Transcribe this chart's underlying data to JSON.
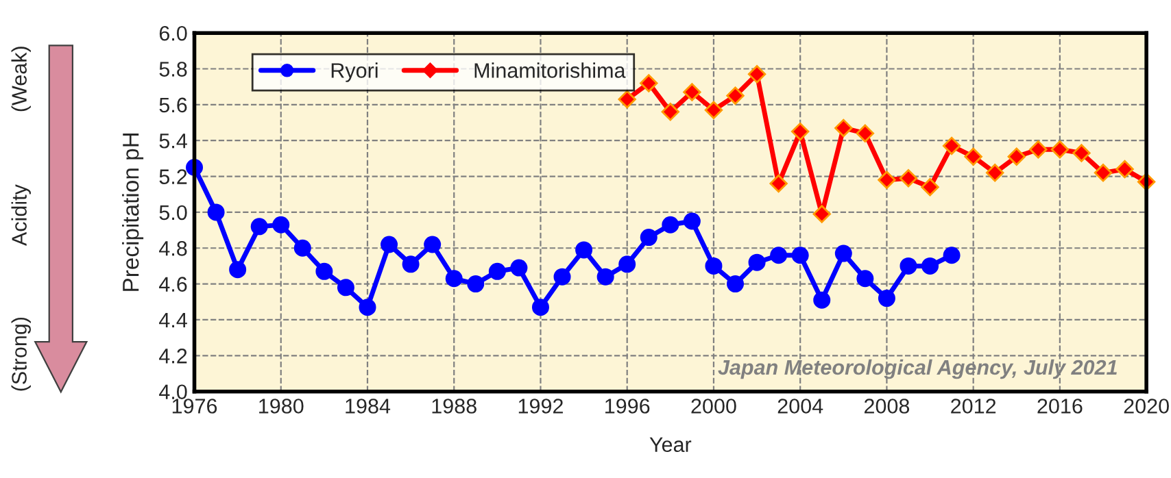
{
  "chart_data": {
    "type": "line",
    "xlabel": "Year",
    "ylabel": "Precipitation pH",
    "annotations": [
      "(Weak)",
      "Acidity",
      "(Strong)",
      "Japan Meteorological Agency, July 2021"
    ],
    "series": [
      {
        "name": "Ryori",
        "color": "#0000ff",
        "marker": "circle",
        "x": [
          1976,
          1977,
          1978,
          1979,
          1980,
          1981,
          1982,
          1983,
          1984,
          1985,
          1986,
          1987,
          1988,
          1989,
          1990,
          1991,
          1992,
          1993,
          1994,
          1995,
          1996,
          1997,
          1998,
          1999,
          2000,
          2001,
          2002,
          2003,
          2004,
          2005,
          2006,
          2007,
          2008,
          2009,
          2010,
          2011
        ],
        "values": [
          5.25,
          5.0,
          4.68,
          4.92,
          4.93,
          4.8,
          4.67,
          4.58,
          4.47,
          4.82,
          4.71,
          4.82,
          4.63,
          4.6,
          4.67,
          4.69,
          4.47,
          4.64,
          4.79,
          4.64,
          4.71,
          4.86,
          4.93,
          4.95,
          4.7,
          4.6,
          4.72,
          4.76,
          4.76,
          4.51,
          4.77,
          4.63,
          4.52,
          4.7,
          4.7,
          4.76
        ]
      },
      {
        "name": "Minamitorishima",
        "color": "#ff0000",
        "marker": "diamond",
        "x": [
          1996,
          1997,
          1998,
          1999,
          2000,
          2001,
          2002,
          2003,
          2004,
          2005,
          2006,
          2007,
          2008,
          2009,
          2010,
          2011,
          2012,
          2013,
          2014,
          2015,
          2016,
          2017,
          2018,
          2019,
          2020
        ],
        "values": [
          5.63,
          5.72,
          5.56,
          5.67,
          5.57,
          5.65,
          5.77,
          5.16,
          5.45,
          4.99,
          5.47,
          5.44,
          5.18,
          5.19,
          5.14,
          5.37,
          5.31,
          5.22,
          5.31,
          5.35,
          5.35,
          5.33,
          5.22,
          5.24,
          5.17
        ]
      }
    ],
    "xlim": [
      1976,
      2020
    ],
    "xticks": [
      1976,
      1980,
      1984,
      1988,
      1992,
      1996,
      2000,
      2004,
      2008,
      2012,
      2016,
      2020
    ],
    "ylim": [
      4.0,
      6.0
    ],
    "yticks": [
      {
        "value": 4.0,
        "label": "4.0"
      },
      {
        "value": 4.2,
        "label": "4.2"
      },
      {
        "value": 4.4,
        "label": "4.4"
      },
      {
        "value": 4.6,
        "label": "4.6"
      },
      {
        "value": 4.8,
        "label": "4.8"
      },
      {
        "value": 5.0,
        "label": "5.0"
      },
      {
        "value": 5.2,
        "label": "5.2"
      },
      {
        "value": 5.4,
        "label": "5.4"
      },
      {
        "value": 5.6,
        "label": "5.6"
      },
      {
        "value": 5.8,
        "label": "5.8"
      },
      {
        "value": 6.0,
        "label": "6.0"
      }
    ],
    "grid": true,
    "legend": "top left",
    "line_style": "solid"
  }
}
